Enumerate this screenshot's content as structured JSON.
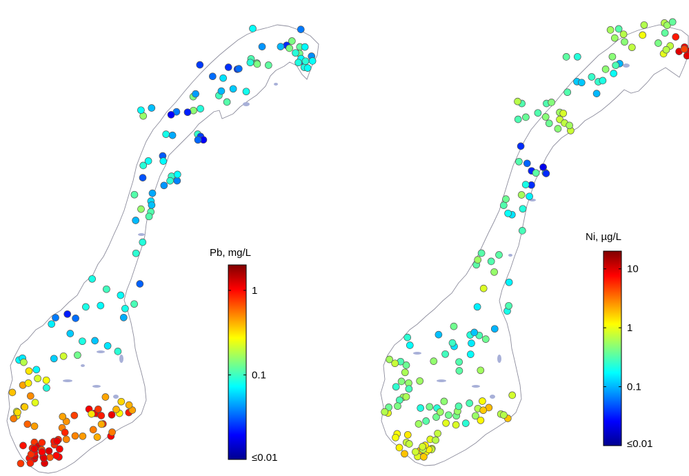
{
  "colormap": [
    "#00008f",
    "#0000ff",
    "#0080ff",
    "#00ffff",
    "#80ff80",
    "#ffff00",
    "#ff8000",
    "#ff0000",
    "#800000"
  ],
  "coastline_color": "#8c8c9c",
  "lake_color": "#a8b0d8",
  "marker_edge_color": "#555555",
  "maps": [
    {
      "id": "pb",
      "element": "lead",
      "colorbar": {
        "title": "Pb, mg/L",
        "scale": "log",
        "range": [
          0.01,
          2
        ],
        "ticks": [
          {
            "value": 1,
            "label": "1"
          },
          {
            "value": 0.1,
            "label": "0.1"
          },
          {
            "value": 0.01,
            "label": "≤0.01"
          }
        ]
      },
      "sites_summary": "Lake sampling sites across Norway; highest Pb (orange-red, ~0.5–2 mg/L) concentrated along the southern coast, mostly 0.03–0.2 mg/L in the north"
    },
    {
      "id": "ni",
      "element": "nickel",
      "colorbar": {
        "title": "Ni, µg/L",
        "scale": "log",
        "range": [
          0.01,
          20
        ],
        "ticks": [
          {
            "value": 10,
            "label": "10"
          },
          {
            "value": 1,
            "label": "1"
          },
          {
            "value": 0.1,
            "label": "0.1"
          },
          {
            "value": 0.01,
            "label": "≤0.01"
          }
        ]
      },
      "sites_summary": "Ni mostly 0.1–1 µg/L; highest values (~10 µg/L) in the far north-east"
    }
  ]
}
